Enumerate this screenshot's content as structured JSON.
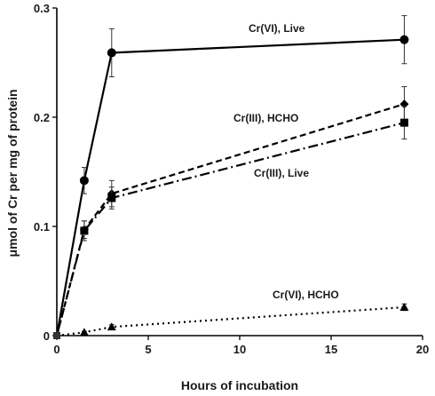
{
  "chart_data": {
    "type": "line",
    "title": "",
    "xlabel": "Hours of incubation",
    "ylabel": "μmol of Cr per mg of protein",
    "xlim": [
      0,
      20
    ],
    "ylim": [
      0,
      0.3
    ],
    "xticks": [
      0,
      5,
      10,
      15,
      20
    ],
    "yticks": [
      0,
      0.1,
      0.2,
      0.3
    ],
    "xtick_labels": [
      "0",
      "5",
      "10",
      "15",
      "20"
    ],
    "ytick_labels": [
      "0",
      "0.1",
      "0.2",
      "0.3"
    ],
    "grid": false,
    "legend": "none (series labelled inline on the plot)",
    "series": [
      {
        "name": "Cr(VI), Live",
        "line_style": "solid",
        "marker": "circle",
        "color": "#000000",
        "x": [
          0,
          1.5,
          3,
          19
        ],
        "y": [
          0,
          0.142,
          0.259,
          0.271
        ],
        "yerr": [
          0,
          0.012,
          0.022,
          0.022
        ]
      },
      {
        "name": "Cr(III), HCHO",
        "line_style": "dashed",
        "marker": "diamond",
        "color": "#000000",
        "x": [
          0,
          1.5,
          3,
          19
        ],
        "y": [
          0,
          0.097,
          0.13,
          0.212
        ],
        "yerr": [
          0,
          0.008,
          0.012,
          0.016
        ]
      },
      {
        "name": "Cr(III), Live",
        "line_style": "dash-dot",
        "marker": "square",
        "color": "#000000",
        "x": [
          0,
          1.5,
          3,
          19
        ],
        "y": [
          0,
          0.096,
          0.126,
          0.195
        ],
        "yerr": [
          0,
          0.009,
          0.01,
          0.015
        ]
      },
      {
        "name": "Cr(VI), HCHO",
        "line_style": "dotted",
        "marker": "triangle",
        "color": "#000000",
        "x": [
          0,
          1.5,
          3,
          19
        ],
        "y": [
          0,
          0.003,
          0.008,
          0.026
        ],
        "yerr": [
          0,
          0.001,
          0.002,
          0.003
        ]
      }
    ]
  }
}
